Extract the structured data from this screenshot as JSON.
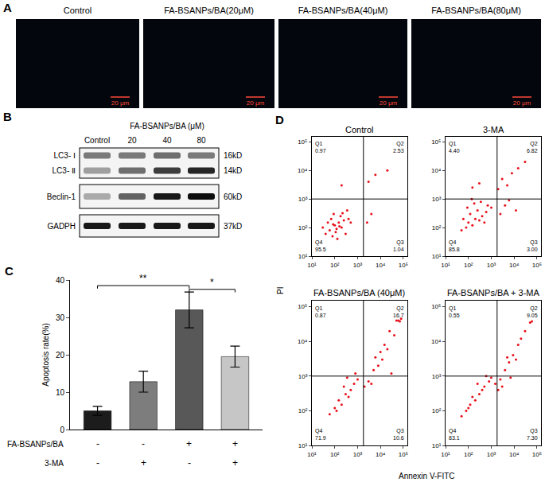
{
  "panel_a": {
    "letter": "A",
    "images": [
      {
        "title": "Control",
        "scale_bar": "20 μm"
      },
      {
        "title": "FA-BSANPs/BA(20μM)",
        "scale_bar": "20 μm"
      },
      {
        "title": "FA-BSANPs/BA(40μM)",
        "scale_bar": "20 μm"
      },
      {
        "title": "FA-BSANPs/BA(80μM)",
        "scale_bar": "20 μm"
      }
    ]
  },
  "panel_b": {
    "letter": "B",
    "header": "FA-BSANPs/BA (μM)",
    "lanes": [
      "Control",
      "20",
      "40",
      "80"
    ],
    "blots": [
      {
        "labels": [
          "LC3- Ⅰ",
          "LC3- Ⅱ"
        ],
        "sizes": [
          "16kD",
          "14kD"
        ],
        "intensity": [
          [
            0.5,
            0.5,
            0.55,
            0.5
          ],
          [
            0.35,
            0.55,
            0.75,
            0.85
          ]
        ]
      },
      {
        "labels": [
          "Beclin-1"
        ],
        "sizes": [
          "60kD"
        ],
        "intensity": [
          [
            0.3,
            0.6,
            0.9,
            0.95
          ]
        ]
      },
      {
        "labels": [
          "GADPH"
        ],
        "sizes": [
          "37kD"
        ],
        "intensity": [
          [
            0.9,
            0.9,
            0.9,
            0.9
          ]
        ]
      }
    ]
  },
  "panel_d": {
    "letter": "D",
    "x_label": "Annexin V-FITC",
    "y_label": "PI"
  },
  "chart_data": [
    {
      "panel": "C",
      "type": "bar",
      "y_label": "Apoptosis rate(%)",
      "categories": [
        null,
        null,
        null,
        null
      ],
      "values": [
        5,
        12.8,
        32,
        19.5
      ],
      "errors": [
        1.2,
        2.8,
        4.8,
        2.8
      ],
      "colors": [
        "#1c1c1c",
        "#7d7d7d",
        "#585858",
        "#c6c6c6"
      ],
      "ylim": [
        0,
        40
      ],
      "yticks": [
        0,
        10,
        20,
        30,
        40
      ],
      "tick_labels": "y",
      "conditions": [
        {
          "label": "FA-BSANPs/BA",
          "marks": [
            "-",
            "-",
            "+",
            "+"
          ]
        },
        {
          "label": "3-MA",
          "marks": [
            "-",
            "+",
            "-",
            "+"
          ]
        }
      ],
      "comparisons": [
        {
          "from": 0,
          "to": 2,
          "y": 38.5,
          "label": "**"
        },
        {
          "from": 2,
          "to": 3,
          "y": 37.5,
          "label": "*"
        }
      ]
    },
    {
      "type": "scatter",
      "title": "Control",
      "log": true,
      "color": "#e8101a",
      "x": [
        40,
        60,
        80,
        100,
        120,
        150,
        70,
        200,
        250,
        90,
        300,
        50,
        180,
        130,
        110,
        400,
        30,
        160,
        220,
        85,
        500,
        350,
        2600,
        4000,
        200,
        3000,
        6000,
        20000
      ],
      "y": [
        60,
        80,
        50,
        120,
        90,
        150,
        200,
        100,
        180,
        300,
        60,
        150,
        250,
        40,
        70,
        200,
        100,
        110,
        320,
        130,
        150,
        400,
        150,
        300,
        3000,
        4000,
        7000,
        10000
      ],
      "xlim": [
        10,
        150000
      ],
      "ylim": [
        10,
        150000
      ],
      "xticks": [
        {
          "value": 10,
          "label": "10¹"
        },
        {
          "value": 100,
          "label": "10²"
        },
        {
          "value": 1000,
          "label": "10³"
        },
        {
          "value": 10000,
          "label": "10⁴"
        },
        {
          "value": 100000,
          "label": "10⁵"
        }
      ],
      "yticks": [
        {
          "value": 10,
          "label": "10¹"
        },
        {
          "value": 100,
          "label": "10²"
        },
        {
          "value": 1000,
          "label": "10³"
        },
        {
          "value": 10000,
          "label": "10⁴"
        },
        {
          "value": 100000,
          "label": "10⁵"
        }
      ],
      "gate": {
        "x": 1800,
        "y": 1000
      },
      "quadrants": {
        "names": [
          "Q1",
          "Q2",
          "Q3",
          "Q4"
        ],
        "values": [
          0.97,
          2.53,
          1.04,
          95.5
        ],
        "value_labels": [
          "0.97",
          "2.53",
          "1.04",
          "95.5"
        ]
      }
    },
    {
      "type": "scatter",
      "title": "3-MA",
      "log": true,
      "color": "#e8101a",
      "x": [
        50,
        80,
        100,
        150,
        200,
        120,
        300,
        250,
        400,
        90,
        180,
        600,
        700,
        350,
        60,
        140,
        500,
        1000,
        2500,
        4000,
        6000,
        3000,
        8000,
        15000,
        30000,
        300,
        150,
        5000,
        2000,
        12000
      ],
      "y": [
        80,
        100,
        150,
        120,
        200,
        300,
        180,
        400,
        250,
        500,
        700,
        350,
        600,
        800,
        200,
        1000,
        150,
        500,
        300,
        600,
        900,
        5000,
        8000,
        12000,
        20000,
        3500,
        2500,
        3000,
        2200,
        400
      ],
      "xlim": [
        10,
        150000
      ],
      "ylim": [
        10,
        150000
      ],
      "xticks": [
        {
          "value": 10,
          "label": "10¹"
        },
        {
          "value": 100,
          "label": "10²"
        },
        {
          "value": 1000,
          "label": "10³"
        },
        {
          "value": 10000,
          "label": "10⁴"
        },
        {
          "value": 100000,
          "label": "10⁵"
        }
      ],
      "yticks": [
        {
          "value": 10,
          "label": "10¹"
        },
        {
          "value": 100,
          "label": "10²"
        },
        {
          "value": 1000,
          "label": "10³"
        },
        {
          "value": 10000,
          "label": "10⁴"
        },
        {
          "value": 100000,
          "label": "10⁵"
        }
      ],
      "gate": {
        "x": 1800,
        "y": 1000
      },
      "quadrants": {
        "names": [
          "Q1",
          "Q2",
          "Q3",
          "Q4"
        ],
        "values": [
          4.4,
          6.82,
          3.0,
          85.8
        ],
        "value_labels": [
          "4.40",
          "6.82",
          "3.00",
          "85.8"
        ]
      }
    },
    {
      "type": "scatter",
      "title": "FA-BSANPs/BA (40μM)",
      "log": true,
      "color": "#e8101a",
      "x": [
        60,
        100,
        150,
        200,
        300,
        250,
        400,
        500,
        700,
        1000,
        120,
        350,
        800,
        2000,
        3000,
        5000,
        8000,
        12000,
        20000,
        40000,
        60000,
        80000,
        50000,
        70000,
        6000,
        10000,
        15000,
        25000,
        4000,
        30000
      ],
      "y": [
        80,
        120,
        200,
        150,
        300,
        500,
        250,
        400,
        600,
        800,
        100,
        900,
        1200,
        500,
        700,
        1500,
        2000,
        3000,
        6000,
        15000,
        40000,
        45000,
        40000,
        38000,
        3500,
        5000,
        8000,
        20000,
        600,
        1200
      ],
      "xlim": [
        10,
        150000
      ],
      "ylim": [
        10,
        150000
      ],
      "xticks": [
        {
          "value": 10,
          "label": "10¹"
        },
        {
          "value": 100,
          "label": "10²"
        },
        {
          "value": 1000,
          "label": "10³"
        },
        {
          "value": 10000,
          "label": "10⁴"
        },
        {
          "value": 100000,
          "label": "10⁵"
        }
      ],
      "yticks": [
        {
          "value": 10,
          "label": "10¹"
        },
        {
          "value": 100,
          "label": "10²"
        },
        {
          "value": 1000,
          "label": "10³"
        },
        {
          "value": 10000,
          "label": "10⁴"
        },
        {
          "value": 100000,
          "label": "10⁵"
        }
      ],
      "gate": {
        "x": 1800,
        "y": 1000
      },
      "quadrants": {
        "names": [
          "Q1",
          "Q2",
          "Q3",
          "Q4"
        ],
        "values": [
          0.87,
          16.7,
          10.6,
          71.9
        ],
        "value_labels": [
          "0.87",
          "16.7",
          "10.6",
          "71.9"
        ]
      }
    },
    {
      "type": "scatter",
      "title": "FA-BSANPs/BA + 3-MA",
      "log": true,
      "color": "#e8101a",
      "x": [
        50,
        80,
        120,
        200,
        300,
        400,
        150,
        250,
        500,
        800,
        1000,
        100,
        600,
        1500,
        2500,
        4000,
        6000,
        9000,
        15000,
        30000,
        50000,
        60000,
        3000,
        7000,
        12000,
        2000,
        20000,
        5000
      ],
      "y": [
        70,
        100,
        150,
        200,
        300,
        400,
        250,
        600,
        500,
        700,
        900,
        120,
        1000,
        600,
        800,
        1500,
        2500,
        4000,
        8000,
        20000,
        35000,
        38000,
        500,
        900,
        3000,
        400,
        12000,
        3500
      ],
      "xlim": [
        10,
        150000
      ],
      "ylim": [
        10,
        150000
      ],
      "xticks": [
        {
          "value": 10,
          "label": "10¹"
        },
        {
          "value": 100,
          "label": "10²"
        },
        {
          "value": 1000,
          "label": "10³"
        },
        {
          "value": 10000,
          "label": "10⁴"
        },
        {
          "value": 100000,
          "label": "10⁵"
        }
      ],
      "yticks": [
        {
          "value": 10,
          "label": "10¹"
        },
        {
          "value": 100,
          "label": "10²"
        },
        {
          "value": 1000,
          "label": "10³"
        },
        {
          "value": 10000,
          "label": "10⁴"
        },
        {
          "value": 100000,
          "label": "10⁵"
        }
      ],
      "gate": {
        "x": 1800,
        "y": 1000
      },
      "quadrants": {
        "names": [
          "Q1",
          "Q2",
          "Q3",
          "Q4"
        ],
        "values": [
          0.55,
          9.05,
          7.3,
          83.1
        ],
        "value_labels": [
          "0.55",
          "9.05",
          "7.30",
          "83.1"
        ]
      }
    }
  ]
}
